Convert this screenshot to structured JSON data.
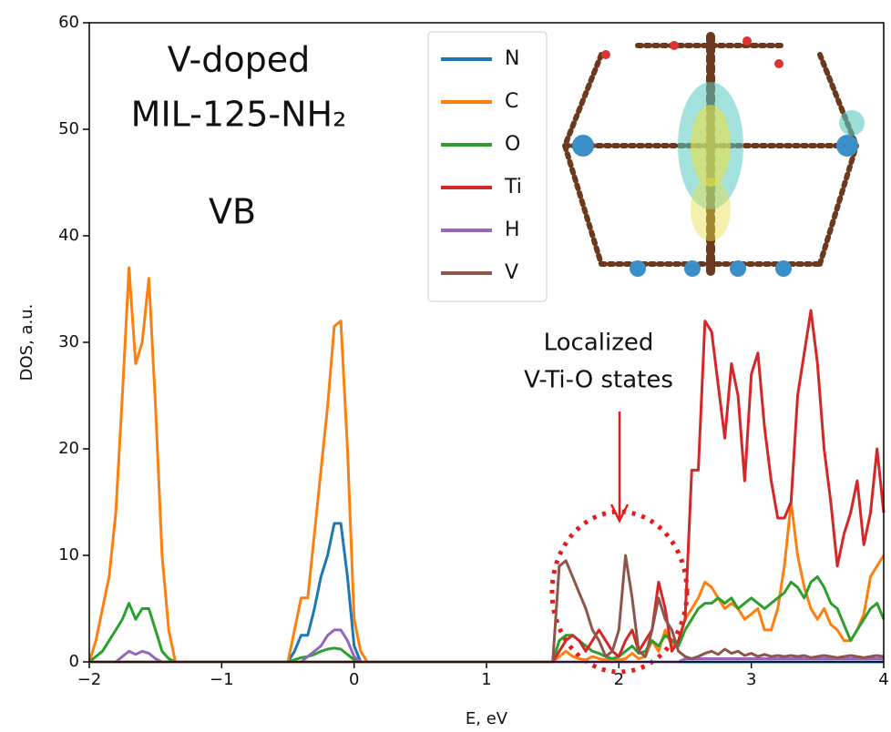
{
  "chart_data": {
    "type": "line",
    "annotations": [
      "V-doped",
      "MIL-125-NH₂",
      "VB",
      "Localized",
      "V-Ti-O states"
    ],
    "xlabel": "E, eV",
    "ylabel": "DOS, a.u.",
    "x": [
      -2,
      -1.95,
      -1.9,
      -1.85,
      -1.8,
      -1.75,
      -1.7,
      -1.65,
      -1.6,
      -1.55,
      -1.5,
      -1.45,
      -1.4,
      -1.35,
      -1.3,
      -1.25,
      -1.2,
      -1.15,
      -1.1,
      -1.05,
      -1,
      -0.95,
      -0.9,
      -0.85,
      -0.8,
      -0.75,
      -0.7,
      -0.65,
      -0.6,
      -0.55,
      -0.5,
      -0.45,
      -0.4,
      -0.35,
      -0.3,
      -0.25,
      -0.2,
      -0.15,
      -0.1,
      -0.05,
      0,
      0.05,
      0.1,
      0.15,
      0.2,
      0.25,
      0.3,
      0.35,
      0.4,
      0.45,
      0.5,
      0.55,
      0.6,
      0.65,
      0.7,
      0.75,
      0.8,
      0.85,
      0.9,
      0.95,
      1,
      1.05,
      1.1,
      1.15,
      1.2,
      1.25,
      1.3,
      1.35,
      1.4,
      1.45,
      1.5,
      1.55,
      1.6,
      1.65,
      1.7,
      1.75,
      1.8,
      1.85,
      1.9,
      1.95,
      2,
      2.05,
      2.1,
      2.15,
      2.2,
      2.25,
      2.3,
      2.35,
      2.4,
      2.45,
      2.5,
      2.55,
      2.6,
      2.65,
      2.7,
      2.75,
      2.8,
      2.85,
      2.9,
      2.95,
      3,
      3.05,
      3.1,
      3.15,
      3.2,
      3.25,
      3.3,
      3.35,
      3.4,
      3.45,
      3.5,
      3.55,
      3.6,
      3.65,
      3.7,
      3.75,
      3.8,
      3.85,
      3.9,
      3.95,
      4
    ],
    "series": [
      {
        "name": "N",
        "color": "#1f77b4",
        "values": [
          0,
          0,
          0,
          0,
          0,
          0,
          0,
          0,
          0,
          0,
          0,
          0,
          0,
          0,
          0,
          0,
          0,
          0,
          0,
          0,
          0,
          0,
          0,
          0,
          0,
          0,
          0,
          0,
          0,
          0,
          0,
          1,
          2.5,
          2.5,
          5,
          8,
          10,
          13,
          13,
          8,
          1.5,
          0,
          0,
          0,
          0,
          0,
          0,
          0,
          0,
          0,
          0,
          0,
          0,
          0,
          0,
          0,
          0,
          0,
          0,
          0,
          0,
          0,
          0,
          0,
          0,
          0,
          0,
          0,
          0,
          0,
          0,
          0,
          0,
          0,
          0,
          0,
          0,
          0,
          0,
          0,
          0,
          0,
          0,
          0,
          0,
          0,
          0,
          0,
          0,
          0,
          0,
          0,
          0,
          0,
          0,
          0,
          0,
          0,
          0,
          0,
          0,
          0,
          0,
          0,
          0,
          0,
          0,
          0,
          0,
          0,
          0,
          0,
          0,
          0,
          0,
          0,
          0,
          0,
          0,
          0,
          0
        ]
      },
      {
        "name": "C",
        "color": "#ff7f0e",
        "values": [
          0,
          2,
          5,
          8,
          14,
          25,
          37,
          28,
          30,
          36,
          24,
          10,
          3,
          0,
          0,
          0,
          0,
          0,
          0,
          0,
          0,
          0,
          0,
          0,
          0,
          0,
          0,
          0,
          0,
          0,
          0,
          3,
          6,
          6,
          12,
          18,
          24,
          31.5,
          32,
          20,
          4,
          1,
          0,
          0,
          0,
          0,
          0,
          0,
          0,
          0,
          0,
          0,
          0,
          0,
          0,
          0,
          0,
          0,
          0,
          0,
          0,
          0,
          0,
          0,
          0,
          0,
          0,
          0,
          0,
          0,
          0,
          0.5,
          1,
          0.5,
          0.3,
          0.2,
          0.5,
          0.3,
          0.2,
          0.3,
          0.2,
          0.3,
          0.8,
          0.3,
          0.5,
          2,
          1,
          3,
          1.5,
          2,
          4,
          5,
          6,
          7.5,
          7,
          6,
          5,
          5.5,
          5,
          4,
          4.5,
          5,
          3,
          3,
          5,
          9,
          15,
          10,
          7,
          5,
          4,
          5,
          3.5,
          3,
          2,
          2,
          3,
          4.5,
          8,
          9,
          10
        ]
      },
      {
        "name": "O",
        "color": "#2ca02c",
        "values": [
          0,
          0.5,
          1,
          2,
          3,
          4,
          5.5,
          4,
          5,
          5,
          3,
          1,
          0.3,
          0,
          0,
          0,
          0,
          0,
          0,
          0,
          0,
          0,
          0,
          0,
          0,
          0,
          0,
          0,
          0,
          0,
          0,
          0.2,
          0.4,
          0.5,
          0.7,
          1,
          1.2,
          1.3,
          1.2,
          0.7,
          0.2,
          0,
          0,
          0,
          0,
          0,
          0,
          0,
          0,
          0,
          0,
          0,
          0,
          0,
          0,
          0,
          0,
          0,
          0,
          0,
          0,
          0,
          0,
          0,
          0,
          0,
          0,
          0,
          0,
          0,
          0,
          2,
          2.5,
          2.5,
          2,
          1.5,
          1,
          0.8,
          0.5,
          0.3,
          0.5,
          1,
          1.5,
          0.8,
          1,
          2,
          1.5,
          2.5,
          2,
          1.5,
          3,
          4,
          5,
          5.5,
          5.5,
          6,
          5.5,
          6,
          5,
          5.5,
          6,
          5.5,
          5,
          5.5,
          6,
          6.5,
          7.5,
          7,
          6,
          7.5,
          8,
          7,
          5.5,
          5,
          3.5,
          2,
          3,
          4,
          5,
          5.5,
          4
        ]
      },
      {
        "name": "Ti",
        "color": "#d62728",
        "values": [
          0,
          0,
          0,
          0,
          0,
          0,
          0,
          0,
          0,
          0,
          0,
          0,
          0,
          0,
          0,
          0,
          0,
          0,
          0,
          0,
          0,
          0,
          0,
          0,
          0,
          0,
          0,
          0,
          0,
          0,
          0,
          0,
          0,
          0,
          0,
          0,
          0,
          0,
          0,
          0,
          0,
          0,
          0,
          0,
          0,
          0,
          0,
          0,
          0,
          0,
          0,
          0,
          0,
          0,
          0,
          0,
          0,
          0,
          0,
          0,
          0,
          0,
          0,
          0,
          0,
          0,
          0,
          0,
          0,
          0,
          0,
          1,
          2,
          2.5,
          2,
          1,
          2,
          3,
          2,
          1,
          0.5,
          2,
          3,
          1,
          2,
          3,
          7.5,
          5,
          1,
          2,
          4,
          18,
          18,
          32,
          31,
          26,
          21,
          28,
          25,
          17,
          27,
          29,
          22,
          17,
          13.5,
          13.5,
          15,
          25,
          29,
          33,
          28,
          20,
          15,
          9,
          12,
          14,
          17,
          11,
          14,
          20,
          14
        ]
      },
      {
        "name": "H",
        "color": "#9467bd",
        "values": [
          0,
          0,
          0,
          0,
          0,
          0.5,
          1,
          0.7,
          1,
          0.8,
          0.3,
          0,
          0,
          0,
          0,
          0,
          0,
          0,
          0,
          0,
          0,
          0,
          0,
          0,
          0,
          0,
          0,
          0,
          0,
          0,
          0,
          0,
          0,
          0.5,
          1,
          1.5,
          2.5,
          3,
          3,
          2,
          0.5,
          0,
          0,
          0,
          0,
          0,
          0,
          0,
          0,
          0,
          0,
          0,
          0,
          0,
          0,
          0,
          0,
          0,
          0,
          0,
          0,
          0,
          0,
          0,
          0,
          0,
          0,
          0,
          0,
          0,
          0,
          0,
          0,
          0,
          0,
          0,
          0,
          0,
          0,
          0,
          0,
          0,
          0,
          0,
          0,
          0,
          0,
          0,
          0,
          0,
          0.3,
          0.3,
          0.3,
          0.3,
          0.3,
          0.3,
          0.3,
          0.3,
          0.3,
          0.3,
          0.3,
          0.3,
          0.3,
          0.3,
          0.3,
          0.3,
          0.3,
          0.3,
          0.3,
          0.3,
          0.3,
          0.3,
          0.3,
          0.3,
          0.3,
          0.3,
          0.3,
          0.3,
          0.3,
          0.3,
          0.3
        ]
      },
      {
        "name": "V",
        "color": "#8c564b",
        "values": [
          0,
          0,
          0,
          0,
          0,
          0,
          0,
          0,
          0,
          0,
          0,
          0,
          0,
          0,
          0,
          0,
          0,
          0,
          0,
          0,
          0,
          0,
          0,
          0,
          0,
          0,
          0,
          0,
          0,
          0,
          0,
          0,
          0,
          0,
          0,
          0,
          0,
          0,
          0,
          0,
          0,
          0,
          0,
          0,
          0,
          0,
          0,
          0,
          0,
          0,
          0,
          0,
          0,
          0,
          0,
          0,
          0,
          0,
          0,
          0,
          0,
          0,
          0,
          0,
          0,
          0,
          0,
          0,
          0,
          0,
          0,
          9,
          9.5,
          8,
          6.5,
          5,
          3,
          2,
          0.5,
          1,
          3,
          10,
          6,
          1,
          0.5,
          3,
          6,
          4,
          3,
          1,
          0.5,
          0.3,
          0.5,
          0.8,
          1,
          0.7,
          1.2,
          0.8,
          1,
          0.6,
          0.8,
          0.5,
          0.7,
          0.5,
          0.6,
          0.5,
          0.6,
          0.5,
          0.6,
          0.4,
          0.5,
          0.6,
          0.5,
          0.4,
          0.5,
          0.6,
          0.5,
          0.4,
          0.5,
          0.6,
          0.5
        ]
      }
    ],
    "xlim": [
      -2,
      4
    ],
    "xticks": [
      {
        "value": -2,
        "label": "−2"
      },
      {
        "value": -1,
        "label": "−1"
      },
      0,
      1,
      2,
      3,
      4
    ],
    "ylim": [
      0,
      60
    ],
    "yticks": [
      0,
      10,
      20,
      30,
      40,
      50,
      60
    ],
    "legend": "upper center"
  }
}
